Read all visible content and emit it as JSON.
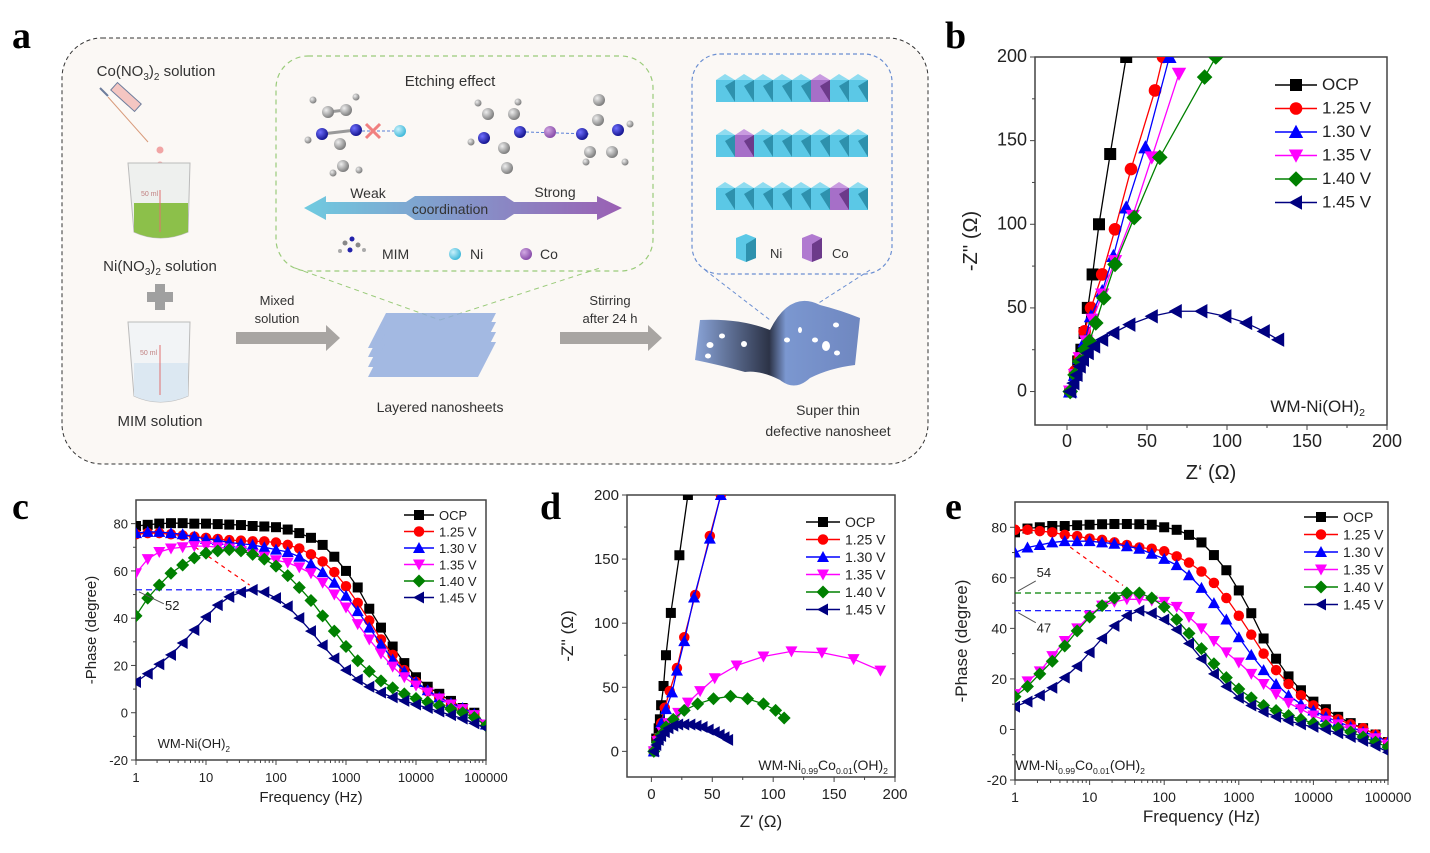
{
  "panels": {
    "a": {
      "letter": "a"
    },
    "b": {
      "letter": "b"
    },
    "c": {
      "letter": "c"
    },
    "d": {
      "letter": "d"
    },
    "e": {
      "letter": "e"
    }
  },
  "schematic": {
    "co_solution": {
      "prefix": "Co(NO",
      "sub": "3",
      "mid": ")",
      "sub2": "2",
      "suffix": " solution"
    },
    "ni_solution": {
      "prefix": "Ni(NO",
      "sub": "3",
      "mid": ")",
      "sub2": "2",
      "suffix": " solution"
    },
    "mim_solution": "MIM solution",
    "beaker_label": "50 ml",
    "beaker_ticks": [
      "50",
      "40",
      "30",
      "20",
      "10"
    ],
    "mixed_solution": [
      "Mixed",
      "solution"
    ],
    "layered_nanosheets": "Layered nanosheets",
    "stirring": [
      "Stirring",
      "after 24 h"
    ],
    "super_thin": [
      "Super thin",
      "defective nanosheet"
    ],
    "etching_effect": "Etching effect",
    "weak": "Weak",
    "strong": "Strong",
    "coordination": "coordination",
    "legend_mim": "MIM",
    "legend_ni": "Ni",
    "legend_co": "Co",
    "poly_ni": "Ni",
    "poly_co": "Co",
    "colors": {
      "ni": "#5bc8e6",
      "co": "#9b62b8",
      "arrow_left": "#6fcbe0",
      "arrow_right": "#9a5fb3",
      "sheet": "#7c99d4",
      "beaker_green": "#8cc04a",
      "beaker_blue": "#dce8f2",
      "box_bg": "#fbf8f5"
    }
  },
  "series_style": [
    {
      "name": "OCP",
      "color": "#000000",
      "marker": "square"
    },
    {
      "name": "1.25 V",
      "color": "#ff0000",
      "marker": "circle"
    },
    {
      "name": "1.30 V",
      "color": "#0000ff",
      "marker": "triangle-up"
    },
    {
      "name": "1.35 V",
      "color": "#ff00ff",
      "marker": "triangle-down"
    },
    {
      "name": "1.40 V",
      "color": "#008000",
      "marker": "diamond"
    },
    {
      "name": "1.45 V",
      "color": "#000080",
      "marker": "triangle-left"
    }
  ],
  "chart_data": [
    {
      "id": "b",
      "type": "scatter",
      "title": "",
      "xlabel": "Z‘ (Ω)",
      "ylabel": "-Z'' (Ω)",
      "xlim": [
        -20,
        200
      ],
      "ylim": [
        -20,
        200
      ],
      "xticks": [
        0,
        50,
        100,
        150,
        200
      ],
      "yticks": [
        0,
        50,
        100,
        150,
        200
      ],
      "annotation": {
        "text": "WM-Ni(OH)",
        "sub": "2"
      },
      "legend_position": "top-right",
      "series": [
        {
          "name": "OCP",
          "x": [
            2,
            5,
            7,
            9,
            11,
            13,
            16,
            20,
            27,
            37
          ],
          "y": [
            0,
            10,
            18,
            25,
            35,
            50,
            70,
            100,
            142,
            200
          ]
        },
        {
          "name": "1.25 V",
          "x": [
            2,
            5,
            8,
            11,
            15,
            22,
            30,
            40,
            55,
            60
          ],
          "y": [
            0,
            12,
            20,
            36,
            50,
            70,
            97,
            133,
            180,
            200
          ]
        },
        {
          "name": "1.30 V",
          "x": [
            2,
            5,
            8,
            11,
            15,
            22,
            29,
            37,
            49,
            64
          ],
          "y": [
            0,
            10,
            20,
            30,
            45,
            60,
            81,
            110,
            146,
            200
          ]
        },
        {
          "name": "1.35 V",
          "x": [
            2,
            5,
            8,
            12,
            16,
            22,
            30,
            41,
            53,
            70
          ],
          "y": [
            0,
            10,
            20,
            30,
            43,
            58,
            78,
            105,
            140,
            190
          ]
        },
        {
          "name": "1.40 V",
          "x": [
            2,
            5,
            8,
            11,
            14,
            18,
            23,
            30,
            42,
            58,
            86,
            93
          ],
          "y": [
            0,
            10,
            18,
            25,
            30,
            41,
            56,
            76,
            104,
            140,
            188,
            200
          ]
        },
        {
          "name": "1.45 V",
          "x": [
            2,
            4,
            6,
            8,
            10,
            13,
            17,
            22,
            29,
            39,
            53,
            68,
            84,
            99,
            112,
            123,
            132
          ],
          "y": [
            0,
            5,
            10,
            15,
            19,
            23,
            27,
            31,
            35,
            40,
            45,
            48,
            48,
            45,
            41,
            36,
            31
          ]
        }
      ]
    },
    {
      "id": "c",
      "type": "line",
      "title": "",
      "xlabel": "Frequency (Hz)",
      "ylabel": "-Phase (degree)",
      "xscale": "log",
      "xlim": [
        1,
        100000
      ],
      "ylim": [
        -20,
        90
      ],
      "xticks": [
        1,
        10,
        100,
        1000,
        10000,
        100000
      ],
      "xticklabels": [
        "1",
        "10",
        "100",
        "1000",
        "10000",
        "100000"
      ],
      "yticks": [
        -20,
        0,
        20,
        40,
        60,
        80
      ],
      "annotation": {
        "text": "WM-Ni(OH)",
        "sub": "2"
      },
      "marker_line": {
        "value": 52,
        "label": "52"
      },
      "legend_position": "top-right",
      "x": [
        1,
        1.47,
        2.15,
        3.16,
        4.64,
        6.81,
        10,
        14.7,
        21.5,
        31.6,
        46.4,
        68.1,
        100,
        147,
        215,
        316,
        464,
        681,
        1000,
        1470,
        2150,
        3160,
        4640,
        6810,
        10000,
        14700,
        21500,
        31600,
        46400,
        68100,
        100000
      ],
      "series": [
        {
          "name": "OCP",
          "values": [
            79,
            79.5,
            80,
            80.2,
            80.2,
            80,
            80,
            79.8,
            79.6,
            79.4,
            79,
            78.8,
            78.5,
            77.5,
            76,
            74,
            71,
            66,
            60,
            53,
            44,
            36,
            28,
            21,
            15,
            11,
            8,
            5,
            2,
            0,
            -5
          ]
        },
        {
          "name": "1.25 V",
          "values": [
            75.5,
            76,
            76,
            75.5,
            75,
            74.5,
            74,
            73.5,
            73,
            72.8,
            72.5,
            72.5,
            72,
            71,
            69.5,
            67,
            64,
            59.5,
            53.5,
            46.5,
            39,
            31,
            24.5,
            18,
            13,
            9,
            6,
            3.5,
            1.5,
            -1,
            -5
          ]
        },
        {
          "name": "1.30 V",
          "values": [
            76,
            76.5,
            76.5,
            76,
            75.5,
            74.5,
            73.5,
            73,
            72,
            71.5,
            71,
            70,
            69,
            68,
            66,
            63,
            59.5,
            55,
            49.5,
            43,
            36,
            29,
            22.5,
            17.5,
            13,
            9.5,
            6.5,
            4,
            2,
            -0.5,
            -5
          ]
        },
        {
          "name": "1.35 V",
          "values": [
            59,
            65,
            68,
            69.5,
            70,
            70.5,
            70.5,
            70,
            69.5,
            68.5,
            67,
            66,
            64.5,
            63.5,
            61.5,
            59,
            55,
            50,
            44.5,
            37.5,
            31,
            25,
            19.5,
            15,
            11.5,
            8.5,
            6,
            3.5,
            1.5,
            -1,
            -5
          ]
        },
        {
          "name": "1.40 V",
          "values": [
            41,
            48.5,
            54,
            59,
            62.5,
            65.5,
            67.5,
            68.5,
            69,
            68.5,
            67,
            65,
            62,
            58,
            53,
            47.5,
            41,
            34.5,
            28,
            22,
            17.5,
            13.5,
            10.5,
            8,
            6,
            4.5,
            3,
            1.5,
            0,
            -2,
            -5.5
          ]
        },
        {
          "name": "1.45 V",
          "values": [
            13,
            16.5,
            20.5,
            24.5,
            29.5,
            35,
            40.5,
            45.5,
            49,
            51,
            52,
            51,
            48.5,
            45,
            40,
            34.5,
            28.5,
            23,
            18,
            14,
            11,
            8.5,
            6.5,
            5,
            3.5,
            2,
            0.5,
            -1,
            -2.5,
            -4.5,
            -6.5
          ]
        }
      ]
    },
    {
      "id": "d",
      "type": "scatter",
      "title": "",
      "xlabel": "Z' (Ω)",
      "ylabel": "-Z'' (Ω)",
      "xlim": [
        -20,
        200
      ],
      "ylim": [
        -20,
        200
      ],
      "xticks": [
        0,
        50,
        100,
        150,
        200
      ],
      "yticks": [
        0,
        50,
        100,
        150,
        200
      ],
      "annotation": {
        "text": "WM-Ni",
        "sub1": "0.99",
        "mid": "Co",
        "sub2": "0.01",
        "end": "(OH)",
        "sub3": "2"
      },
      "legend_position": "top-right",
      "series": [
        {
          "name": "OCP",
          "x": [
            2,
            4,
            6,
            7,
            8,
            10,
            12,
            16,
            23,
            30
          ],
          "y": [
            0,
            10,
            18,
            25,
            36,
            51,
            75,
            108,
            153,
            200
          ]
        },
        {
          "name": "1.25 V",
          "x": [
            2,
            5,
            8,
            11,
            15,
            21,
            27,
            36,
            48,
            57
          ],
          "y": [
            0,
            10,
            22,
            34,
            47,
            65,
            89,
            122,
            168,
            200
          ]
        },
        {
          "name": "1.30 V",
          "x": [
            2,
            5,
            8,
            12,
            17,
            21,
            27,
            35,
            48,
            57
          ],
          "y": [
            0,
            10,
            22,
            33,
            46,
            63,
            86,
            120,
            166,
            200
          ]
        },
        {
          "name": "1.35 V",
          "x": [
            2,
            5,
            9,
            14,
            22,
            30,
            40,
            52,
            70,
            92,
            115,
            140,
            166,
            188
          ],
          "y": [
            0,
            8,
            15,
            22,
            30,
            38,
            47,
            57,
            67,
            74,
            78,
            77,
            72,
            63
          ]
        },
        {
          "name": "1.40 V",
          "x": [
            2,
            5,
            8,
            12,
            18,
            27,
            38,
            51,
            65,
            79,
            92,
            102,
            109
          ],
          "y": [
            0,
            7,
            13,
            19,
            25,
            32,
            37,
            41,
            43,
            41,
            37,
            32,
            26
          ]
        },
        {
          "name": "1.45 V",
          "x": [
            2,
            4,
            6,
            8,
            11,
            14,
            18,
            22,
            27,
            32,
            37,
            42,
            47,
            52,
            56,
            60,
            63
          ],
          "y": [
            0,
            5,
            9,
            12,
            15,
            18,
            20,
            21,
            21,
            21,
            20,
            19,
            17,
            15,
            13,
            11,
            9
          ]
        }
      ]
    },
    {
      "id": "e",
      "type": "line",
      "title": "",
      "xlabel": "Frequency (Hz)",
      "ylabel": "-Phase (degree)",
      "xscale": "log",
      "xlim": [
        1,
        100000
      ],
      "ylim": [
        -20,
        90
      ],
      "xticks": [
        1,
        10,
        100,
        1000,
        10000,
        100000
      ],
      "xticklabels": [
        "1",
        "10",
        "100",
        "1000",
        "10000",
        "100000"
      ],
      "yticks": [
        -20,
        0,
        20,
        40,
        60,
        80
      ],
      "annotation": {
        "text": "WM-Ni",
        "sub1": "0.99",
        "mid": "Co",
        "sub2": "0.01",
        "end": "(OH)",
        "sub3": "2"
      },
      "marker_lines": [
        {
          "value": 54,
          "label": "54",
          "color": "#008000"
        },
        {
          "value": 47,
          "label": "47",
          "color": "#0000ff"
        }
      ],
      "legend_position": "top-right",
      "x": [
        1,
        1.47,
        2.15,
        3.16,
        4.64,
        6.81,
        10,
        14.7,
        21.5,
        31.6,
        46.4,
        68.1,
        100,
        147,
        215,
        316,
        464,
        681,
        1000,
        1470,
        2150,
        3160,
        4640,
        6810,
        10000,
        14700,
        21500,
        31600,
        46400,
        68100,
        100000
      ],
      "series": [
        {
          "name": "OCP",
          "values": [
            78,
            79.5,
            80,
            80.5,
            80.5,
            80.8,
            81,
            81.2,
            81.3,
            81.3,
            81.2,
            81,
            80,
            79,
            77,
            74,
            69,
            63,
            55,
            46,
            36,
            28,
            21,
            15.5,
            11,
            8,
            5,
            2.5,
            0.5,
            -2,
            -5
          ]
        },
        {
          "name": "1.25 V",
          "values": [
            79,
            79,
            78.5,
            78,
            77,
            76.5,
            75.5,
            75,
            74,
            73,
            72,
            71.5,
            70.5,
            68.5,
            66,
            62.5,
            58,
            52,
            45,
            37.5,
            30,
            23.5,
            18,
            13.5,
            9.5,
            6.5,
            4,
            2,
            0.5,
            -2,
            -5
          ]
        },
        {
          "name": "1.30 V",
          "values": [
            70,
            72,
            73,
            74,
            74.5,
            74.5,
            74.5,
            74,
            73.5,
            72.5,
            71.5,
            69.5,
            67.5,
            65,
            61,
            56,
            50,
            43.5,
            36.5,
            29.5,
            23.5,
            18,
            13.5,
            10,
            7.5,
            5,
            3,
            1,
            -1,
            -2.5,
            -5
          ]
        },
        {
          "name": "1.35 V",
          "values": [
            14,
            19,
            23,
            29,
            35,
            40,
            45,
            49,
            50.5,
            51.5,
            51.5,
            51,
            50.5,
            48.5,
            44.5,
            40,
            35,
            30.5,
            26.5,
            22,
            18,
            14,
            10.5,
            8,
            5.5,
            3.5,
            2,
            0,
            -1.5,
            -3.5,
            -6
          ]
        },
        {
          "name": "1.40 V",
          "values": [
            13,
            17,
            22,
            27,
            33,
            39,
            44.5,
            49,
            52,
            54,
            54,
            52,
            48.5,
            43.5,
            38,
            32,
            26,
            20.5,
            16,
            12.5,
            9.5,
            7.5,
            5.5,
            4,
            2.5,
            1.5,
            0.5,
            -1,
            -3,
            -5,
            -7
          ]
        },
        {
          "name": "1.45 V",
          "values": [
            9,
            11,
            13.5,
            16.5,
            20.5,
            25,
            30.5,
            36,
            41,
            45,
            47,
            46,
            43.5,
            39.5,
            34,
            28,
            22,
            17,
            12.5,
            9.5,
            7,
            5,
            3.5,
            2,
            1,
            0,
            -1.5,
            -3,
            -4.5,
            -6.5,
            -9
          ]
        }
      ]
    }
  ]
}
